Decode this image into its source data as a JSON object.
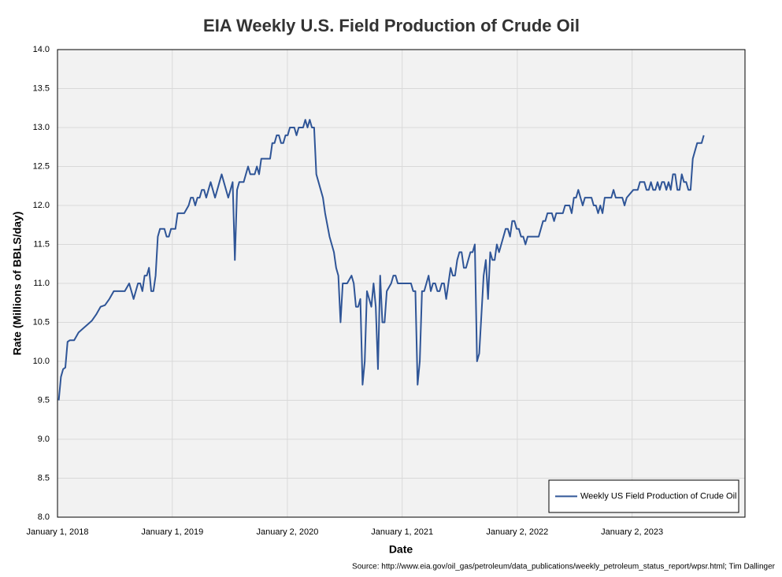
{
  "chart_data": {
    "type": "line",
    "title": "EIA Weekly U.S. Field Production of Crude Oil",
    "xlabel": "Date",
    "ylabel": "Rate (Millions of BBLS/day)",
    "source": "Source: http://www.eia.gov/oil_gas/petroleum/data_publications/weekly_petroleum_status_report/wpsr.html; Tim Dallinger",
    "xlim": [
      "2018-01-01",
      "2023-12-27"
    ],
    "xticks": [
      {
        "value": "2018-01-01",
        "label": "January 1, 2018"
      },
      {
        "value": "2019-01-01",
        "label": "January 1, 2019"
      },
      {
        "value": "2020-01-02",
        "label": "January 2, 2020"
      },
      {
        "value": "2021-01-01",
        "label": "January 1, 2021"
      },
      {
        "value": "2022-01-02",
        "label": "January 2, 2022"
      },
      {
        "value": "2023-01-02",
        "label": "January 2, 2023"
      }
    ],
    "ylim": [
      8,
      14
    ],
    "yticks": [
      {
        "value": 8,
        "label": "8.0"
      },
      8.5,
      {
        "value": 9,
        "label": "9.0"
      },
      9.5,
      {
        "value": 10,
        "label": "10.0"
      },
      10.5,
      {
        "value": 11,
        "label": "11.0"
      },
      11.5,
      {
        "value": 12,
        "label": "12.0"
      },
      12.5,
      {
        "value": 13,
        "label": "13.0"
      },
      13.5,
      {
        "value": 14,
        "label": "14.0"
      }
    ],
    "grid": true,
    "legend": "lower right",
    "x": [
      "2018-01-05",
      "2018-01-12",
      "2018-01-19",
      "2018-01-26",
      "2018-02-02",
      "2018-02-09",
      "2018-02-23",
      "2018-03-09",
      "2018-03-23",
      "2018-04-06",
      "2018-04-20",
      "2018-05-04",
      "2018-05-18",
      "2018-06-01",
      "2018-06-15",
      "2018-06-29",
      "2018-07-13",
      "2018-07-27",
      "2018-08-03",
      "2018-08-17",
      "2018-08-24",
      "2018-08-31",
      "2018-09-07",
      "2018-09-14",
      "2018-09-21",
      "2018-09-28",
      "2018-10-05",
      "2018-10-12",
      "2018-10-19",
      "2018-10-26",
      "2018-11-02",
      "2018-11-09",
      "2018-11-16",
      "2018-11-23",
      "2018-12-07",
      "2018-12-14",
      "2018-12-21",
      "2018-12-28",
      "2019-01-11",
      "2019-01-18",
      "2019-02-08",
      "2019-02-22",
      "2019-03-01",
      "2019-03-08",
      "2019-03-15",
      "2019-03-22",
      "2019-03-29",
      "2019-04-05",
      "2019-04-12",
      "2019-04-19",
      "2019-04-26",
      "2019-05-03",
      "2019-05-10",
      "2019-05-17",
      "2019-05-31",
      "2019-06-07",
      "2019-06-14",
      "2019-06-28",
      "2019-07-12",
      "2019-07-19",
      "2019-07-26",
      "2019-08-02",
      "2019-08-16",
      "2019-08-30",
      "2019-09-06",
      "2019-09-20",
      "2019-09-27",
      "2019-10-04",
      "2019-10-11",
      "2019-10-25",
      "2019-11-08",
      "2019-11-15",
      "2019-11-22",
      "2019-11-29",
      "2019-12-06",
      "2019-12-13",
      "2019-12-20",
      "2019-12-27",
      "2020-01-03",
      "2020-01-10",
      "2020-01-24",
      "2020-01-31",
      "2020-02-07",
      "2020-02-21",
      "2020-02-28",
      "2020-03-06",
      "2020-03-13",
      "2020-03-20",
      "2020-03-27",
      "2020-04-03",
      "2020-04-17",
      "2020-04-24",
      "2020-05-01",
      "2020-05-15",
      "2020-05-22",
      "2020-05-29",
      "2020-06-05",
      "2020-06-12",
      "2020-06-19",
      "2020-06-26",
      "2020-07-10",
      "2020-07-24",
      "2020-07-31",
      "2020-08-07",
      "2020-08-14",
      "2020-08-21",
      "2020-08-28",
      "2020-09-04",
      "2020-09-11",
      "2020-09-18",
      "2020-09-25",
      "2020-10-02",
      "2020-10-09",
      "2020-10-16",
      "2020-10-23",
      "2020-10-30",
      "2020-11-06",
      "2020-11-13",
      "2020-11-27",
      "2020-12-04",
      "2020-12-11",
      "2020-12-18",
      "2021-01-08",
      "2021-01-29",
      "2021-02-05",
      "2021-02-12",
      "2021-02-19",
      "2021-02-26",
      "2021-03-05",
      "2021-03-12",
      "2021-03-19",
      "2021-03-26",
      "2021-04-02",
      "2021-04-09",
      "2021-04-16",
      "2021-04-23",
      "2021-04-30",
      "2021-05-07",
      "2021-05-14",
      "2021-05-21",
      "2021-05-28",
      "2021-06-04",
      "2021-06-11",
      "2021-06-18",
      "2021-06-25",
      "2021-07-02",
      "2021-07-09",
      "2021-07-16",
      "2021-07-23",
      "2021-07-30",
      "2021-08-06",
      "2021-08-13",
      "2021-08-20",
      "2021-08-27",
      "2021-09-03",
      "2021-09-10",
      "2021-09-17",
      "2021-09-24",
      "2021-10-01",
      "2021-10-08",
      "2021-10-15",
      "2021-10-22",
      "2021-10-29",
      "2021-11-05",
      "2021-11-12",
      "2021-11-19",
      "2021-11-26",
      "2021-12-03",
      "2021-12-10",
      "2021-12-17",
      "2021-12-24",
      "2021-12-31",
      "2022-01-07",
      "2022-01-14",
      "2022-01-21",
      "2022-01-28",
      "2022-02-04",
      "2022-02-25",
      "2022-03-11",
      "2022-03-18",
      "2022-03-25",
      "2022-04-01",
      "2022-04-08",
      "2022-04-22",
      "2022-04-29",
      "2022-05-06",
      "2022-05-27",
      "2022-06-03",
      "2022-06-10",
      "2022-06-17",
      "2022-06-24",
      "2022-07-01",
      "2022-07-08",
      "2022-07-15",
      "2022-07-22",
      "2022-07-29",
      "2022-08-05",
      "2022-08-26",
      "2022-09-02",
      "2022-09-09",
      "2022-09-16",
      "2022-09-23",
      "2022-09-30",
      "2022-10-07",
      "2022-10-28",
      "2022-11-04",
      "2022-11-11",
      "2022-11-18",
      "2022-11-25",
      "2022-12-02",
      "2022-12-09",
      "2022-12-16",
      "2023-01-06",
      "2023-01-20",
      "2023-01-27",
      "2023-02-10",
      "2023-02-17",
      "2023-02-24",
      "2023-03-03",
      "2023-03-10",
      "2023-03-17",
      "2023-03-24",
      "2023-03-31",
      "2023-04-07",
      "2023-04-14",
      "2023-04-21",
      "2023-04-28",
      "2023-05-05",
      "2023-05-12",
      "2023-05-19",
      "2023-05-26",
      "2023-06-02",
      "2023-06-09",
      "2023-06-16",
      "2023-06-23",
      "2023-06-30",
      "2023-07-07",
      "2023-07-14",
      "2023-07-21",
      "2023-07-28",
      "2023-08-04",
      "2023-08-11",
      "2023-08-18"
    ],
    "series": [
      {
        "name": "Weekly US Field Production of Crude Oil",
        "color": "#2f5597",
        "values": [
          9.5,
          9.8,
          9.9,
          9.92,
          10.25,
          10.27,
          10.27,
          10.37,
          10.42,
          10.47,
          10.52,
          10.6,
          10.7,
          10.72,
          10.8,
          10.9,
          10.9,
          10.9,
          10.9,
          11.0,
          10.9,
          10.8,
          10.9,
          11.0,
          11.0,
          10.9,
          11.1,
          11.1,
          11.2,
          10.9,
          10.9,
          11.1,
          11.6,
          11.7,
          11.7,
          11.6,
          11.6,
          11.7,
          11.7,
          11.9,
          11.9,
          12.0,
          12.1,
          12.1,
          12.0,
          12.1,
          12.1,
          12.2,
          12.2,
          12.1,
          12.2,
          12.3,
          12.2,
          12.1,
          12.3,
          12.4,
          12.3,
          12.1,
          12.3,
          11.3,
          12.2,
          12.3,
          12.3,
          12.5,
          12.4,
          12.4,
          12.5,
          12.4,
          12.6,
          12.6,
          12.6,
          12.8,
          12.8,
          12.9,
          12.9,
          12.8,
          12.8,
          12.9,
          12.9,
          13.0,
          13.0,
          12.9,
          13.0,
          13.0,
          13.1,
          13.0,
          13.1,
          13.0,
          13.0,
          12.4,
          12.2,
          12.1,
          11.9,
          11.6,
          11.5,
          11.4,
          11.2,
          11.1,
          10.5,
          11.0,
          11.0,
          11.1,
          11.0,
          10.7,
          10.7,
          10.8,
          9.7,
          10.0,
          10.9,
          10.8,
          10.7,
          11.0,
          10.7,
          9.9,
          11.1,
          10.5,
          10.5,
          10.9,
          11.0,
          11.1,
          11.1,
          11.0,
          11.0,
          11.0,
          10.9,
          10.9,
          9.7,
          10.0,
          10.9,
          10.9,
          11.0,
          11.1,
          10.9,
          11.0,
          11.0,
          10.9,
          10.9,
          11.0,
          11.0,
          10.8,
          11.0,
          11.2,
          11.1,
          11.1,
          11.3,
          11.4,
          11.4,
          11.2,
          11.2,
          11.3,
          11.4,
          11.4,
          11.5,
          10.0,
          10.1,
          10.6,
          11.1,
          11.3,
          10.8,
          11.4,
          11.3,
          11.3,
          11.5,
          11.4,
          11.5,
          11.6,
          11.7,
          11.7,
          11.6,
          11.8,
          11.8,
          11.7,
          11.7,
          11.6,
          11.6,
          11.5,
          11.6,
          11.6,
          11.6,
          11.7,
          11.8,
          11.8,
          11.9,
          11.9,
          11.8,
          11.9,
          11.9,
          12.0,
          12.0,
          12.0,
          11.9,
          12.1,
          12.1,
          12.2,
          12.1,
          12.0,
          12.1,
          12.1,
          12.0,
          12.0,
          11.9,
          12.0,
          11.9,
          12.1,
          12.1,
          12.2,
          12.1,
          12.1,
          12.1,
          12.1,
          12.0,
          12.1,
          12.2,
          12.2,
          12.3,
          12.3,
          12.2,
          12.2,
          12.3,
          12.2,
          12.2,
          12.3,
          12.2,
          12.3,
          12.3,
          12.2,
          12.3,
          12.2,
          12.4,
          12.4,
          12.2,
          12.2,
          12.4,
          12.3,
          12.3,
          12.2,
          12.2,
          12.6,
          12.7,
          12.8,
          12.8,
          12.8,
          12.9
        ]
      }
    ]
  }
}
